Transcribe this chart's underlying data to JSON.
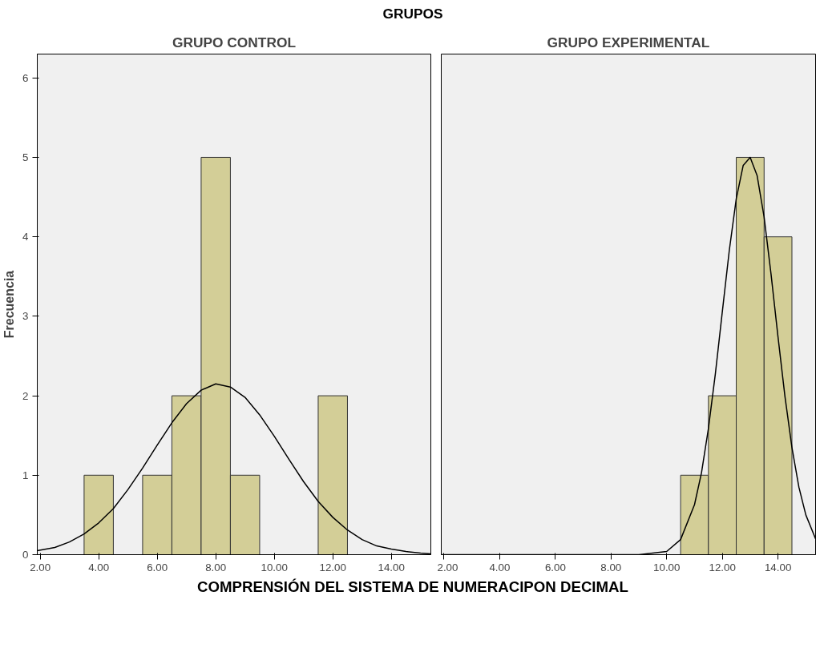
{
  "chart_data": [
    {
      "type": "histogram",
      "subtitle": "GRUPOS",
      "title": "GRUPO CONTROL",
      "xlabel": "COMPRENSIÓN DEL SISTEMA DE NUMERACIPON DECIMAL",
      "ylabel": "Frecuencia",
      "color": "#d3ce97",
      "bins": [
        3.5,
        4.5,
        5.5,
        6.5,
        7.5,
        8.5,
        9.5,
        10.5,
        11.5,
        12.5
      ],
      "values": [
        1,
        0,
        1,
        2,
        5,
        1,
        0,
        0,
        2
      ],
      "series": [
        {
          "type": "line",
          "color": "#000000",
          "x": [
            1.9,
            2.5,
            3,
            3.5,
            4,
            4.5,
            5,
            5.5,
            6,
            6.5,
            7,
            7.5,
            8,
            8.5,
            9,
            9.5,
            10,
            10.5,
            11,
            11.5,
            12,
            12.5,
            13,
            13.5,
            14,
            14.5,
            15,
            15.35
          ],
          "values": [
            0.05,
            0.09,
            0.16,
            0.26,
            0.4,
            0.58,
            0.82,
            1.09,
            1.38,
            1.66,
            1.9,
            2.07,
            2.15,
            2.11,
            1.98,
            1.76,
            1.49,
            1.2,
            0.92,
            0.67,
            0.47,
            0.31,
            0.19,
            0.11,
            0.07,
            0.04,
            0.02,
            0.01
          ]
        }
      ],
      "xlim": [
        1.9,
        15.35
      ],
      "xticks": [
        {
          "value": 2,
          "label": "2.00"
        },
        {
          "value": 4,
          "label": "4.00"
        },
        {
          "value": 6,
          "label": "6.00"
        },
        {
          "value": 8,
          "label": "8.00"
        },
        {
          "value": 10,
          "label": "10.00"
        },
        {
          "value": 12,
          "label": "12.00"
        },
        {
          "value": 14,
          "label": "14.00"
        }
      ],
      "ylim": [
        0,
        6.3
      ],
      "yticks": [
        0,
        1,
        2,
        3,
        4,
        5,
        6
      ],
      "grid": false
    },
    {
      "type": "histogram",
      "title": "GRUPO EXPERIMENTAL",
      "color": "#d3ce97",
      "bins": [
        10.5,
        11.5,
        12.5,
        13.5,
        14.5
      ],
      "values": [
        1,
        2,
        5,
        4
      ],
      "series": [
        {
          "type": "line",
          "color": "#000000",
          "x": [
            1.9,
            8,
            9,
            10,
            10.5,
            11,
            11.25,
            11.5,
            11.75,
            12,
            12.25,
            12.5,
            12.75,
            13,
            13.25,
            13.5,
            13.75,
            14,
            14.25,
            14.5,
            14.75,
            15,
            15.35
          ],
          "values": [
            0,
            0,
            0,
            0.04,
            0.19,
            0.63,
            1.03,
            1.59,
            2.28,
            3.06,
            3.83,
            4.48,
            4.9,
            5.0,
            4.77,
            4.25,
            3.53,
            2.74,
            1.99,
            1.35,
            0.85,
            0.5,
            0.2
          ]
        }
      ],
      "xlim": [
        1.9,
        15.35
      ],
      "xticks": [
        {
          "value": 2,
          "label": "2.00"
        },
        {
          "value": 4,
          "label": "4.00"
        },
        {
          "value": 6,
          "label": "6.00"
        },
        {
          "value": 8,
          "label": "8.00"
        },
        {
          "value": 10,
          "label": "10.00"
        },
        {
          "value": 12,
          "label": "12.00"
        },
        {
          "value": 14,
          "label": "14.00"
        }
      ],
      "ylim": [
        0,
        6.3
      ],
      "yticks": [
        0,
        1,
        2,
        3,
        4,
        5,
        6
      ],
      "grid": false,
      "tick_labels": "x"
    }
  ]
}
